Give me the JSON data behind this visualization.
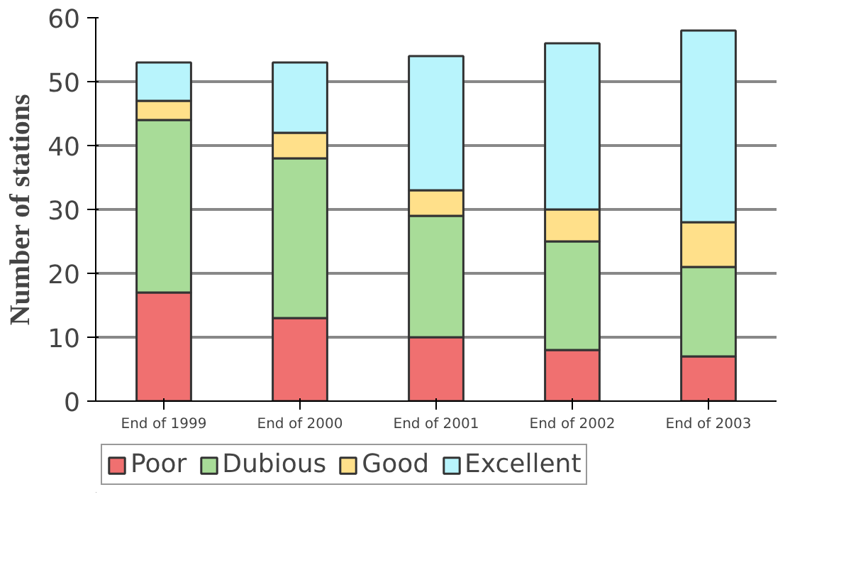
{
  "chart_data": {
    "type": "bar",
    "stacked": true,
    "ylabel": "Number of stations",
    "categories": [
      "End of 1999",
      "End of 2000",
      "End of 2001",
      "End of 2002",
      "End of 2003"
    ],
    "series": [
      {
        "name": "Poor",
        "color": "#f07070",
        "values": [
          17,
          13,
          10,
          8,
          7
        ]
      },
      {
        "name": "Dubious",
        "color": "#a8dc98",
        "values": [
          27,
          25,
          19,
          17,
          14
        ]
      },
      {
        "name": "Good",
        "color": "#ffe08a",
        "values": [
          3,
          4,
          4,
          5,
          7
        ]
      },
      {
        "name": "Excellent",
        "color": "#b8f4fc",
        "values": [
          6,
          11,
          21,
          26,
          30
        ]
      }
    ],
    "ylim": [
      0,
      60
    ],
    "yticks": [
      0,
      10,
      20,
      30,
      40,
      50,
      60
    ],
    "grid": "y",
    "legend": "bottom"
  }
}
